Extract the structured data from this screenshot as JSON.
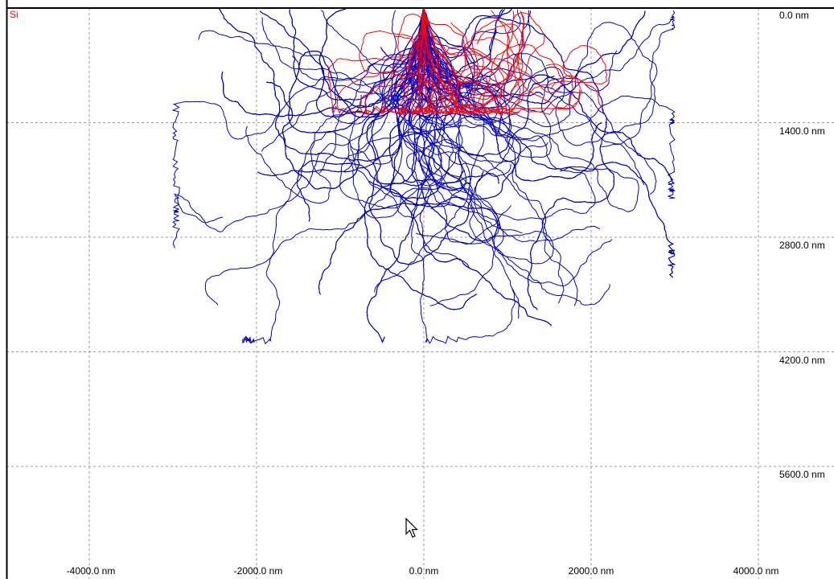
{
  "window": {
    "material_label": "Si",
    "material_color": "#ff0000"
  },
  "chart_data": {
    "type": "scatter",
    "description_units": "nm",
    "x_tick_labels": [
      "-4000.0 nm",
      "-2000.0 nm",
      "0.0 nm",
      "2000.0 nm",
      "4000.0 nm"
    ],
    "y_tick_labels": [
      "0.0 nm",
      "1400.0 nm",
      "2800.0 nm",
      "4200.0 nm",
      "5600.0 nm"
    ],
    "xlim": [
      -5000,
      5000
    ],
    "ylim": [
      0,
      6900
    ],
    "grid": true,
    "beam_origin": {
      "x": 0,
      "y": 0
    },
    "series": [
      {
        "color": "#0000cc",
        "count": 150,
        "max_depth": 4100,
        "max_lateral": 3000
      },
      {
        "color": "#ff0000",
        "count": 20,
        "max_depth": 1300,
        "max_lateral": 2200
      }
    ]
  }
}
